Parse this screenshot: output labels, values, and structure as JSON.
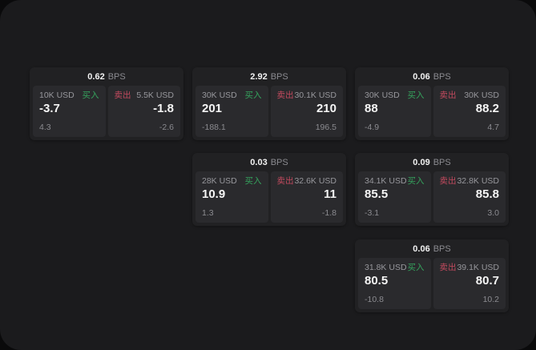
{
  "theme": {
    "outer_bg": "#0a0a0b",
    "screen_bg": "#1b1b1d",
    "card_bg": "#212123",
    "pane_bg": "#2a2a2d",
    "text_primary": "#f5f5f5",
    "text_secondary": "#8b8b90",
    "buy_color": "#35a35d",
    "sell_color": "#c24a5e"
  },
  "labels": {
    "bps": "BPS",
    "buy": "买入",
    "sell": "卖出"
  },
  "cards": [
    {
      "bps": "0.62",
      "buy": {
        "size": "10K USD",
        "value": "-3.7",
        "delta": "4.3"
      },
      "sell": {
        "size": "5.5K USD",
        "value": "-1.8",
        "delta": "-2.6"
      }
    },
    {
      "bps": "2.92",
      "buy": {
        "size": "30K USD",
        "value": "201",
        "delta": "-188.1"
      },
      "sell": {
        "size": "30.1K USD",
        "value": "210",
        "delta": "196.5"
      }
    },
    {
      "bps": "0.06",
      "buy": {
        "size": "30K USD",
        "value": "88",
        "delta": "-4.9"
      },
      "sell": {
        "size": "30K USD",
        "value": "88.2",
        "delta": "4.7"
      }
    },
    {
      "bps": "0.03",
      "buy": {
        "size": "28K USD",
        "value": "10.9",
        "delta": "1.3"
      },
      "sell": {
        "size": "32.6K USD",
        "value": "11",
        "delta": "-1.8"
      }
    },
    {
      "bps": "0.09",
      "buy": {
        "size": "34.1K USD",
        "value": "85.5",
        "delta": "-3.1"
      },
      "sell": {
        "size": "32.8K USD",
        "value": "85.8",
        "delta": "3.0"
      }
    },
    {
      "bps": "0.06",
      "buy": {
        "size": "31.8K USD",
        "value": "80.5",
        "delta": "-10.8"
      },
      "sell": {
        "size": "39.1K USD",
        "value": "80.7",
        "delta": "10.2"
      }
    }
  ]
}
